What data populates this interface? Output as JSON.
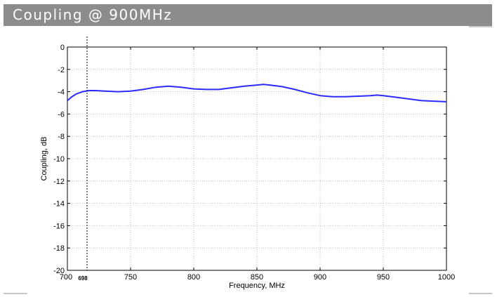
{
  "header": {
    "title": "Coupling @ 900MHz"
  },
  "colors": {
    "title_bar": "#8c8c8c",
    "series": "#2b2bff",
    "grid": "#b0b0b0"
  },
  "chart_data": {
    "type": "line",
    "title": "",
    "xlabel": "Frequency, MHz",
    "ylabel": "Coupling, dB",
    "xlim": [
      700,
      1000
    ],
    "ylim": [
      -20,
      0
    ],
    "xticks": [
      700,
      750,
      800,
      850,
      900,
      950,
      1000
    ],
    "yticks": [
      0,
      -2,
      -4,
      -6,
      -8,
      -10,
      -12,
      -14,
      -16,
      -18,
      -20
    ],
    "grid": true,
    "marker": {
      "x": 698,
      "label": "698"
    },
    "series": [
      {
        "x": [
          700,
          703,
          707,
          712,
          717,
          722,
          730,
          740,
          750,
          760,
          770,
          780,
          790,
          800,
          810,
          820,
          830,
          840,
          850,
          855,
          860,
          870,
          880,
          890,
          900,
          910,
          920,
          930,
          940,
          945,
          950,
          960,
          970,
          980,
          990,
          1000
        ],
        "y": [
          -4.8,
          -4.5,
          -4.2,
          -4.0,
          -3.9,
          -3.9,
          -3.95,
          -4.0,
          -3.95,
          -3.8,
          -3.6,
          -3.5,
          -3.6,
          -3.75,
          -3.8,
          -3.8,
          -3.65,
          -3.5,
          -3.4,
          -3.35,
          -3.4,
          -3.55,
          -3.8,
          -4.1,
          -4.35,
          -4.45,
          -4.45,
          -4.4,
          -4.35,
          -4.3,
          -4.35,
          -4.5,
          -4.65,
          -4.8,
          -4.85,
          -4.9
        ]
      }
    ]
  }
}
